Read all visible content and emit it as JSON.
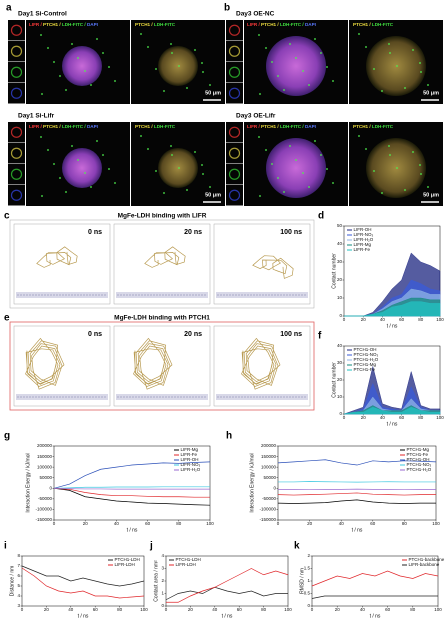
{
  "figure": {
    "micrographs": [
      {
        "letter": "a",
        "condition": "Day1 Si-Control",
        "merge_label": [
          "LIFR / ",
          "PTCH1 / ",
          "LDH-FITC / ",
          "DAPI"
        ],
        "overlay_label": [
          "PTCH1 / ",
          "LDH-FITC"
        ],
        "scale": "50 μm"
      },
      {
        "letter": "b",
        "condition": "Day3 OE-NC",
        "merge_label": [
          "LIFR / ",
          "PTCH1 / ",
          "LDH-FITC / ",
          "DAPI"
        ],
        "overlay_label": [
          "PTCH1 / ",
          "LDH-FITC"
        ],
        "scale": "50 μm"
      },
      {
        "condition": "Day1 Si-Lifr",
        "merge_label": [
          "LIFR / ",
          "PTCH1 / ",
          "LDH-FITC / ",
          "DAPI"
        ],
        "overlay_label": [
          "PTCH1 / ",
          "LDH-FITC"
        ],
        "scale": "50 μm"
      },
      {
        "condition": "Day3 OE-Lifr",
        "merge_label": [
          "LIFR / ",
          "PTCH1 / ",
          "LDH-FITC / ",
          "DAPI"
        ],
        "overlay_label": [
          "PTCH1 / ",
          "LDH-FITC"
        ],
        "scale": "50 μm"
      }
    ],
    "simulations": [
      {
        "letter": "c",
        "title": "MgFe-LDH binding with LIFR",
        "frames": [
          "0 ns",
          "20 ns",
          "100 ns"
        ]
      },
      {
        "letter": "e",
        "title": "MgFe-LDH binding with PTCH1",
        "frames": [
          "0 ns",
          "20 ns",
          "100 ns"
        ]
      }
    ]
  },
  "chart_data": [
    {
      "letter": "d",
      "type": "area",
      "ylabel": "Contact number",
      "xlabel": "t / ns",
      "legend": "upper left",
      "x": [
        0,
        10,
        20,
        30,
        40,
        50,
        60,
        70,
        80,
        90,
        100
      ],
      "xlim": [
        0,
        100
      ],
      "xticks": [
        0,
        20,
        40,
        60,
        80,
        100
      ],
      "ylim": [
        0,
        50
      ],
      "yticks": [
        0,
        10,
        20,
        30,
        40,
        50
      ],
      "series": [
        {
          "name": "LIFR-OH",
          "color": "#1c2580",
          "values": [
            0,
            0,
            0,
            2,
            8,
            15,
            20,
            35,
            30,
            28,
            25
          ]
        },
        {
          "name": "LIFR-NO₃",
          "color": "#3a5bd9",
          "values": [
            0,
            0,
            0,
            1,
            5,
            10,
            12,
            20,
            18,
            15,
            14
          ]
        },
        {
          "name": "LIFR-H₂O",
          "color": "#8fb4e6",
          "values": [
            0,
            0,
            0,
            1,
            4,
            8,
            10,
            15,
            14,
            12,
            12
          ]
        },
        {
          "name": "LIFR-Mg",
          "color": "#138a7c",
          "values": [
            0,
            0,
            0,
            1,
            3,
            6,
            8,
            10,
            10,
            9,
            9
          ]
        },
        {
          "name": "LIFR-Fe",
          "color": "#22c3c3",
          "values": [
            0,
            0,
            0,
            1,
            2,
            5,
            6,
            8,
            8,
            7,
            7
          ]
        }
      ]
    },
    {
      "letter": "f",
      "type": "area",
      "ylabel": "Contact number",
      "xlabel": "t / ns",
      "legend": "upper left",
      "x": [
        0,
        10,
        20,
        30,
        40,
        50,
        60,
        70,
        80,
        90,
        100
      ],
      "xlim": [
        0,
        100
      ],
      "xticks": [
        0,
        20,
        40,
        60,
        80,
        100
      ],
      "ylim": [
        0,
        40
      ],
      "yticks": [
        0,
        10,
        20,
        30,
        40
      ],
      "series": [
        {
          "name": "PTCH1-OH",
          "color": "#1c2580",
          "values": [
            0,
            2,
            4,
            28,
            6,
            4,
            3,
            25,
            5,
            3,
            3
          ]
        },
        {
          "name": "PTCH1-NO₃",
          "color": "#3a5bd9",
          "values": [
            0,
            1,
            3,
            18,
            4,
            3,
            2,
            16,
            4,
            2,
            2
          ]
        },
        {
          "name": "PTCH1-H₂O",
          "color": "#8fb4e6",
          "values": [
            0,
            1,
            2,
            10,
            3,
            2,
            2,
            9,
            3,
            2,
            2
          ]
        },
        {
          "name": "PTCH1-Mg",
          "color": "#138a7c",
          "values": [
            0,
            1,
            2,
            5,
            2,
            2,
            2,
            5,
            2,
            2,
            2
          ]
        },
        {
          "name": "PTCH1-Fe",
          "color": "#22c3c3",
          "values": [
            0,
            1,
            1,
            4,
            2,
            1,
            1,
            4,
            2,
            1,
            1
          ]
        }
      ]
    },
    {
      "letter": "g",
      "type": "line",
      "ylabel": "Interaction Energy / kJ/mol",
      "xlabel": "t / ns",
      "legend": "upper right",
      "x": [
        0,
        10,
        20,
        30,
        40,
        50,
        60,
        70,
        80,
        90,
        100
      ],
      "xlim": [
        0,
        100
      ],
      "xticks": [
        0,
        20,
        40,
        60,
        80,
        100
      ],
      "ylim": [
        -150000,
        200000
      ],
      "yticks": [
        -150000,
        -100000,
        -50000,
        0,
        50000,
        100000,
        150000,
        200000
      ],
      "series": [
        {
          "name": "LIFR-Mg",
          "color": "#000000",
          "values": [
            0,
            -10000,
            -40000,
            -50000,
            -60000,
            -65000,
            -70000,
            -72000,
            -75000,
            -78000,
            -80000
          ]
        },
        {
          "name": "LIFR-Fe",
          "color": "#e0262a",
          "values": [
            0,
            -5000,
            -20000,
            -30000,
            -35000,
            -35000,
            -38000,
            -40000,
            -40000,
            -42000,
            -42000
          ]
        },
        {
          "name": "LIFR-OH",
          "color": "#2a4fb8",
          "values": [
            0,
            20000,
            60000,
            90000,
            100000,
            110000,
            115000,
            120000,
            118000,
            122000,
            125000
          ]
        },
        {
          "name": "LIFR-NO₃",
          "color": "#3cc8e0",
          "values": [
            0,
            2000,
            5000,
            5000,
            6000,
            6000,
            6000,
            7000,
            7000,
            7000,
            7000
          ]
        },
        {
          "name": "LIFR-H₂O",
          "color": "#9a6ad0",
          "values": [
            0,
            -2000,
            -3000,
            -3000,
            -4000,
            -4000,
            -4000,
            -4000,
            -4000,
            -4000,
            -4000
          ]
        }
      ]
    },
    {
      "letter": "h",
      "type": "line",
      "ylabel": "Interaction Energy / kJ/mol",
      "xlabel": "t / ns",
      "legend": "upper right",
      "x": [
        0,
        10,
        20,
        30,
        40,
        50,
        60,
        70,
        80,
        90,
        100
      ],
      "xlim": [
        0,
        100
      ],
      "xticks": [
        0,
        20,
        40,
        60,
        80,
        100
      ],
      "ylim": [
        -150000,
        200000
      ],
      "yticks": [
        -150000,
        -100000,
        -50000,
        0,
        50000,
        100000,
        150000,
        200000
      ],
      "series": [
        {
          "name": "PTCH1-Mg",
          "color": "#000000",
          "values": [
            -70000,
            -72000,
            -70000,
            -68000,
            -60000,
            -55000,
            -65000,
            -70000,
            -72000,
            -70000,
            -70000
          ]
        },
        {
          "name": "PTCH1-Fe",
          "color": "#e0262a",
          "values": [
            -30000,
            -32000,
            -30000,
            -28000,
            -25000,
            -22000,
            -28000,
            -30000,
            -32000,
            -30000,
            -30000
          ]
        },
        {
          "name": "PTCH1-OH",
          "color": "#2a4fb8",
          "values": [
            120000,
            125000,
            130000,
            135000,
            120000,
            110000,
            130000,
            125000,
            130000,
            128000,
            125000
          ]
        },
        {
          "name": "PTCH1-NO₃",
          "color": "#3cc8e0",
          "values": [
            30000,
            30000,
            32000,
            31000,
            30000,
            29000,
            30000,
            31000,
            30000,
            30000,
            30000
          ]
        },
        {
          "name": "PTCH1-H₂O",
          "color": "#9a6ad0",
          "values": [
            -5000,
            -5000,
            -6000,
            -5000,
            -5000,
            -4000,
            -5000,
            -5000,
            -6000,
            -5000,
            -5000
          ]
        }
      ]
    },
    {
      "letter": "i",
      "type": "line",
      "ylabel": "Distance / nm",
      "xlabel": "t / ns",
      "legend": "upper right",
      "x": [
        0,
        10,
        20,
        30,
        40,
        50,
        60,
        70,
        80,
        90,
        100
      ],
      "xlim": [
        0,
        100
      ],
      "xticks": [
        0,
        20,
        40,
        60,
        80,
        100
      ],
      "ylim": [
        3,
        8
      ],
      "yticks": [
        3,
        4,
        5,
        6,
        7,
        8
      ],
      "series": [
        {
          "name": "PTCH1-LDH",
          "color": "#222222",
          "values": [
            7.0,
            6.5,
            6.0,
            6.0,
            5.5,
            5.8,
            5.5,
            5.2,
            5.0,
            5.2,
            5.5
          ]
        },
        {
          "name": "LIFR-LDH",
          "color": "#e0262a",
          "values": [
            6.8,
            6.0,
            5.0,
            4.5,
            4.3,
            4.5,
            4.0,
            4.0,
            3.8,
            3.9,
            4.0
          ]
        }
      ]
    },
    {
      "letter": "j",
      "type": "line",
      "ylabel": "Contact area / nm²",
      "xlabel": "t / ns",
      "legend": "upper left",
      "x": [
        0,
        10,
        20,
        30,
        40,
        50,
        60,
        70,
        80,
        90,
        100
      ],
      "xlim": [
        0,
        100
      ],
      "xticks": [
        0,
        20,
        40,
        60,
        80,
        100
      ],
      "ylim": [
        0,
        4
      ],
      "yticks": [
        0,
        1,
        2,
        3,
        4
      ],
      "series": [
        {
          "name": "PTCH1-LDH",
          "color": "#222222",
          "values": [
            0.5,
            1.0,
            1.2,
            1.0,
            1.5,
            1.2,
            1.0,
            1.2,
            0.8,
            1.0,
            1.0
          ]
        },
        {
          "name": "LIFR-LDH",
          "color": "#e0262a",
          "values": [
            0.3,
            0.3,
            0.8,
            1.2,
            1.5,
            2.0,
            2.5,
            3.0,
            2.5,
            2.8,
            2.5
          ]
        }
      ]
    },
    {
      "letter": "k",
      "type": "line",
      "ylabel": "RMSD / nm",
      "xlabel": "t / ns",
      "legend": "upper right",
      "x": [
        0,
        10,
        20,
        30,
        40,
        50,
        60,
        70,
        80,
        90,
        100
      ],
      "xlim": [
        0,
        100
      ],
      "xticks": [
        0,
        20,
        40,
        60,
        80,
        100
      ],
      "ylim": [
        0,
        2
      ],
      "yticks": [
        0,
        0.5,
        1,
        1.5,
        2
      ],
      "series": [
        {
          "name": "PTCH1-backbone",
          "color": "#e0262a",
          "values": [
            0.8,
            1.0,
            1.2,
            1.1,
            1.3,
            1.2,
            1.4,
            1.2,
            1.1,
            1.3,
            1.2
          ]
        },
        {
          "name": "LIFR-backbone",
          "color": "#222222",
          "values": [
            0.3,
            0.4,
            0.4,
            0.4,
            0.4,
            0.4,
            0.4,
            0.4,
            0.4,
            0.4,
            0.4
          ]
        }
      ]
    }
  ]
}
